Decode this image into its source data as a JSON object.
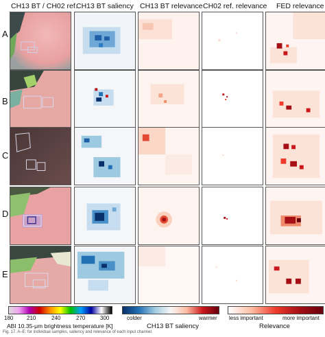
{
  "columns": [
    "CH13 BT / CH02 ref.",
    "CH13 BT saliency",
    "CH13 BT relevance",
    "CH02 ref. relevance",
    "FED relevance"
  ],
  "rows": [
    "A",
    "B",
    "C",
    "D",
    "E"
  ],
  "colorbars": {
    "temperature": {
      "ticks": [
        "180",
        "210",
        "240",
        "270",
        "300"
      ],
      "title": "ABI 10.35-μm brightness temperature [K]",
      "stops": [
        "#dcdcdc",
        "#f0a0f0",
        "#b000b0",
        "#d00000",
        "#ff9000",
        "#ffff00",
        "#00c000",
        "#00a0ff",
        "#0000a0",
        "#ffffff",
        "#000000"
      ]
    },
    "saliency": {
      "left_label": "colder",
      "right_label": "warmer",
      "title": "CH13 BT saliency",
      "stops": [
        "#08306b",
        "#2171b5",
        "#9ecae1",
        "#f7f7f7",
        "#fcbba1",
        "#cb181d",
        "#67000d"
      ]
    },
    "relevance": {
      "left_label": "less important",
      "right_label": "more important",
      "title": "Relevance",
      "stops": [
        "#ffffff",
        "#fcbba1",
        "#ef3b2c",
        "#a50f15",
        "#67000d"
      ]
    }
  },
  "caption": "Fig. 17. A–E: for individual samples, saliency and relevance of each input channel."
}
